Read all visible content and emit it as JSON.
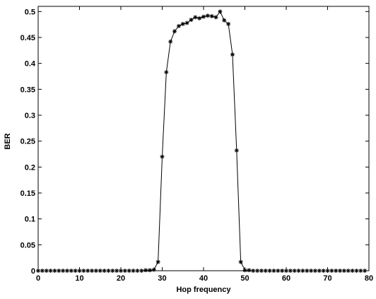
{
  "chart_data": {
    "type": "line",
    "xlabel": "Hop frequency",
    "ylabel": "BER",
    "x": [
      0,
      1,
      2,
      3,
      4,
      5,
      6,
      7,
      8,
      9,
      10,
      11,
      12,
      13,
      14,
      15,
      16,
      17,
      18,
      19,
      20,
      21,
      22,
      23,
      24,
      25,
      26,
      27,
      28,
      29,
      30,
      31,
      32,
      33,
      34,
      35,
      36,
      37,
      38,
      39,
      40,
      41,
      42,
      43,
      44,
      45,
      46,
      47,
      48,
      49,
      50,
      51,
      52,
      53,
      54,
      55,
      56,
      57,
      58,
      59,
      60,
      61,
      62,
      63,
      64,
      65,
      66,
      67,
      68,
      69,
      70,
      71,
      72,
      73,
      74,
      75,
      76,
      77,
      78,
      79
    ],
    "values": [
      0,
      0,
      0,
      0,
      0,
      0,
      0,
      0,
      0,
      0,
      0,
      0,
      0,
      0,
      0,
      0,
      0,
      0,
      0,
      0,
      0,
      0,
      0,
      0,
      0,
      0,
      0.001,
      0.001,
      0.002,
      0.017,
      0.22,
      0.383,
      0.442,
      0.462,
      0.472,
      0.476,
      0.478,
      0.484,
      0.489,
      0.487,
      0.49,
      0.492,
      0.491,
      0.489,
      0.5,
      0.483,
      0.476,
      0.417,
      0.232,
      0.017,
      0.001,
      0.001,
      0,
      0,
      0,
      0,
      0,
      0,
      0,
      0,
      0,
      0,
      0,
      0,
      0,
      0,
      0,
      0,
      0,
      0,
      0,
      0,
      0,
      0,
      0,
      0,
      0,
      0,
      0,
      0
    ],
    "color": "#000000",
    "marker": "star",
    "xlim": [
      0,
      80
    ],
    "xticks": [
      0,
      10,
      20,
      30,
      40,
      50,
      60,
      70,
      80
    ],
    "ylim": [
      0,
      0.51
    ],
    "yticks": [
      0,
      0.05,
      0.1,
      0.15,
      0.2,
      0.25,
      0.3,
      0.35,
      0.4,
      0.45,
      0.5
    ]
  }
}
